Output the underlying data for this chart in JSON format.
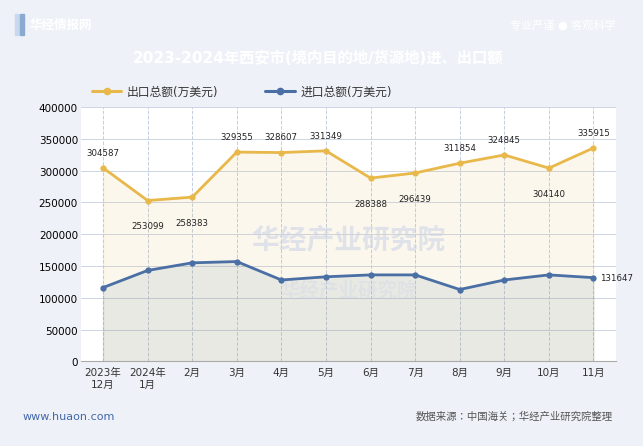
{
  "title": "2023-2024年西安市(境内目的地/货源地)进、出口额",
  "header_left": "华经情报网",
  "header_right": "专业严谨 ● 客观科学",
  "footer_left": "www.huaon.com",
  "footer_right": "数据来源：中国海关；华经产业研究院整理",
  "x_labels": [
    "2023年\n12月",
    "2024年\n1月",
    "2月",
    "3月",
    "4月",
    "5月",
    "6月",
    "7月",
    "8月",
    "9月",
    "10月",
    "11月"
  ],
  "export_values": [
    304587,
    253099,
    258383,
    329355,
    328607,
    331349,
    288388,
    296439,
    311854,
    324845,
    304140,
    335915
  ],
  "import_values": [
    116000,
    143000,
    155000,
    157000,
    128000,
    133000,
    136000,
    136000,
    113000,
    128000,
    136000,
    131647
  ],
  "export_color": "#e8b84b",
  "import_color": "#4a6fa5",
  "export_label": "出口总额(万美元)",
  "import_label": "进口总额(万美元)",
  "ylim": [
    0,
    400000
  ],
  "yticks": [
    0,
    50000,
    100000,
    150000,
    200000,
    250000,
    300000,
    350000,
    400000
  ],
  "bg_color": "#eef2f8",
  "header_bg": "#3d5a8e",
  "plot_bg": "#ffffff",
  "watermark_color": "#cdd5e8",
  "export_label_offsets": [
    8,
    -15,
    -15,
    8,
    8,
    8,
    -15,
    -15,
    8,
    8,
    -15,
    8
  ]
}
